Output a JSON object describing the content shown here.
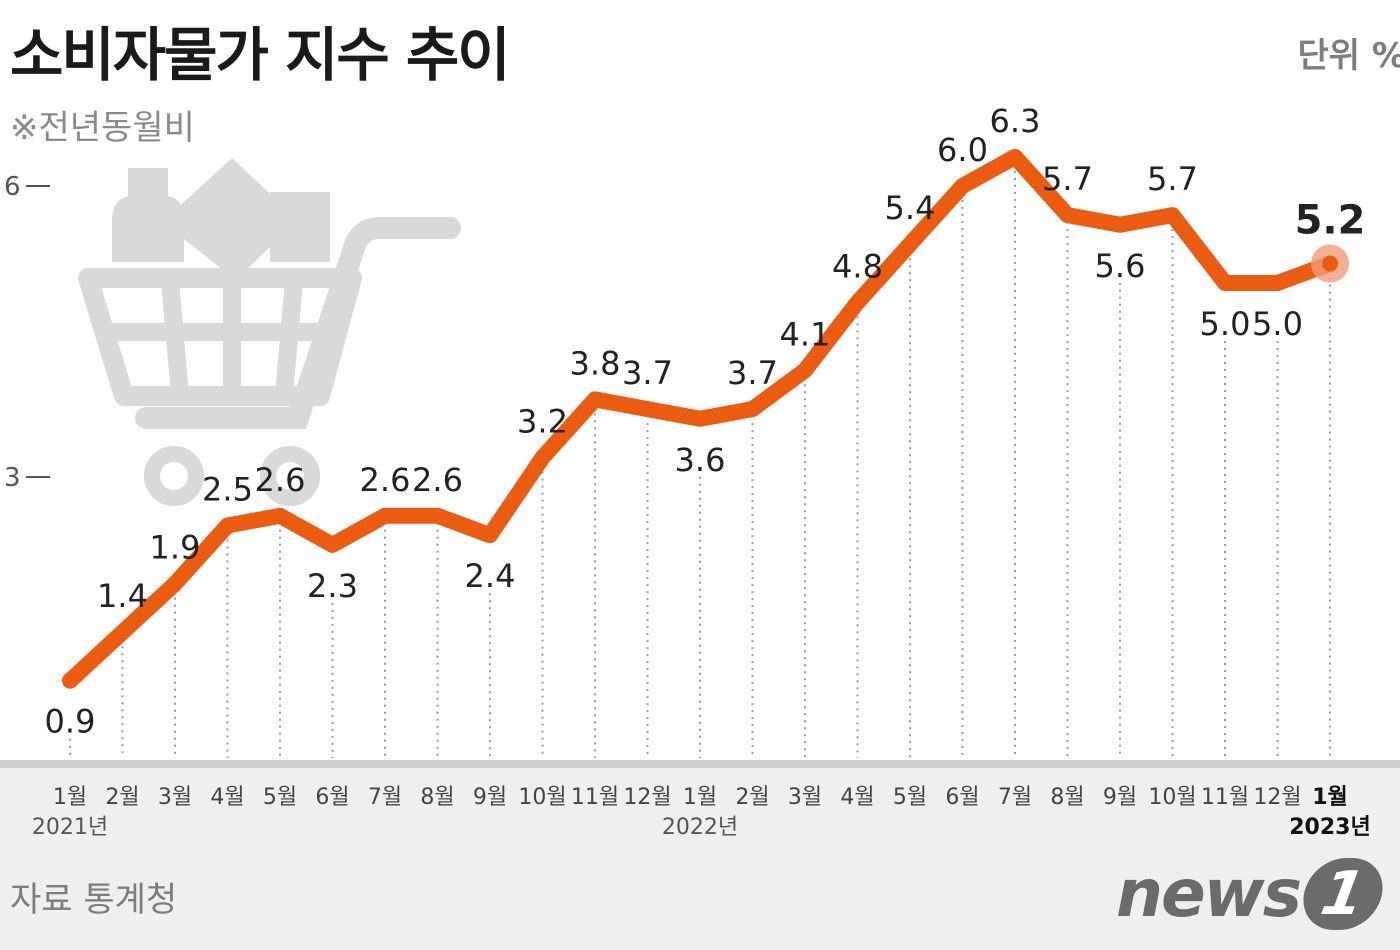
{
  "header": {
    "title": "소비자물가 지수 추이",
    "unit": "단위 %",
    "note": "※전년동월비"
  },
  "footer": {
    "source": "자료 통계청",
    "logo_word": "news",
    "logo_badge": "1"
  },
  "colors": {
    "line": "#eb5b10",
    "highlight": "#f29b7a",
    "grid": "#9a9a9a",
    "axis_band": "#efefef",
    "text": "#222222",
    "cart": "#d9d9d9"
  },
  "icons": [
    "shopping-cart-icon"
  ],
  "chart_data": {
    "type": "line",
    "title": "소비자물가 지수 추이",
    "ylabel": "단위 %",
    "ylim": [
      0,
      6.5
    ],
    "yticks": [
      {
        "value": 3,
        "label": "3"
      },
      {
        "value": 6,
        "label": "6"
      }
    ],
    "grid": "vertical-dotted",
    "categories": [
      "1월",
      "2월",
      "3월",
      "4월",
      "5월",
      "6월",
      "7월",
      "8월",
      "9월",
      "10월",
      "11월",
      "12월",
      "1월",
      "2월",
      "3월",
      "4월",
      "5월",
      "6월",
      "7월",
      "8월",
      "9월",
      "10월",
      "11월",
      "12월",
      "1월"
    ],
    "year_labels": [
      {
        "index": 0,
        "label": "2021년"
      },
      {
        "index": 12,
        "label": "2022년"
      },
      {
        "index": 24,
        "label": "2023년"
      }
    ],
    "values": [
      0.9,
      1.4,
      1.9,
      2.5,
      2.6,
      2.3,
      2.6,
      2.6,
      2.4,
      3.2,
      3.8,
      3.7,
      3.6,
      3.7,
      4.1,
      4.8,
      5.4,
      6.0,
      6.3,
      5.7,
      5.6,
      5.7,
      5.0,
      5.0,
      5.2
    ],
    "value_labels": [
      "0.9",
      "1.4",
      "1.9",
      "2.5",
      "2.6",
      "2.3",
      "2.6",
      "2.6",
      "2.4",
      "3.2",
      "3.8",
      "3.7",
      "3.6",
      "3.7",
      "4.1",
      "4.8",
      "5.4",
      "6.0",
      "6.3",
      "5.7",
      "5.6",
      "5.7",
      "5.0",
      "5.0",
      "5.2"
    ],
    "highlight_index": 24
  }
}
